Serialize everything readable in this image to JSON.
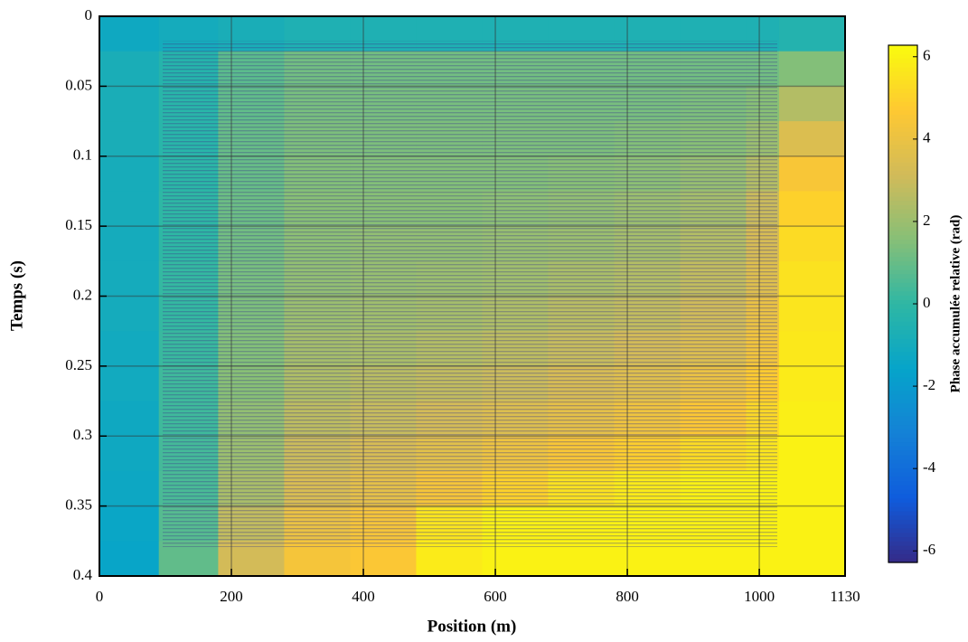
{
  "chart_data": {
    "type": "heatmap",
    "x_label": "Position (m)",
    "y_label": "Temps (s)",
    "colorbar_label": "Phase accumulée relative (rad)",
    "x_bins": [
      0,
      90,
      180,
      280,
      380,
      480,
      580,
      680,
      780,
      880,
      980,
      1030,
      1130
    ],
    "y_bins": [
      0,
      0.025,
      0.05,
      0.075,
      0.1,
      0.125,
      0.15,
      0.175,
      0.2,
      0.225,
      0.25,
      0.275,
      0.3,
      0.325,
      0.35,
      0.375,
      0.4
    ],
    "values": [
      [
        -1.2,
        -1.0,
        -0.8,
        -0.6,
        -0.6,
        -0.6,
        -0.6,
        -0.6,
        -0.6,
        -0.6,
        -0.6,
        -0.4
      ],
      [
        -0.8,
        -0.3,
        0.8,
        1.2,
        1.2,
        1.2,
        1.2,
        1.2,
        1.2,
        1.2,
        1.2,
        1.5
      ],
      [
        -0.8,
        -0.2,
        0.9,
        1.3,
        1.3,
        1.3,
        1.3,
        1.3,
        1.3,
        1.4,
        1.6,
        2.5
      ],
      [
        -0.8,
        -0.2,
        1.0,
        1.4,
        1.4,
        1.4,
        1.4,
        1.4,
        1.5,
        1.6,
        2.0,
        3.5
      ],
      [
        -0.9,
        -0.1,
        1.0,
        1.5,
        1.5,
        1.5,
        1.5,
        1.6,
        1.7,
        1.9,
        2.5,
        4.5
      ],
      [
        -0.9,
        0,
        1.1,
        1.6,
        1.6,
        1.6,
        1.7,
        1.8,
        2.0,
        2.2,
        3.0,
        5.0
      ],
      [
        -1,
        0,
        1.2,
        1.7,
        1.8,
        1.8,
        1.9,
        2.0,
        2.2,
        2.5,
        3.3,
        5.3
      ],
      [
        -1,
        0.1,
        1.3,
        1.8,
        1.9,
        2.0,
        2.1,
        2.3,
        2.5,
        2.8,
        3.6,
        5.5
      ],
      [
        -1,
        0.1,
        1.4,
        2.0,
        2.1,
        2.2,
        2.4,
        2.6,
        2.8,
        3.1,
        4.0,
        5.6
      ],
      [
        -1.1,
        0.2,
        1.5,
        2.2,
        2.3,
        2.5,
        2.7,
        2.9,
        3.2,
        3.5,
        4.3,
        5.7
      ],
      [
        -1.1,
        0.3,
        1.6,
        2.4,
        2.6,
        2.8,
        3.0,
        3.3,
        3.6,
        4.0,
        4.8,
        5.8
      ],
      [
        -1.2,
        0.3,
        1.8,
        2.7,
        2.9,
        3.2,
        3.5,
        3.8,
        4.2,
        4.6,
        5.2,
        5.9
      ],
      [
        -1.2,
        0.4,
        2.0,
        3.0,
        3.3,
        3.7,
        4.1,
        4.5,
        4.9,
        5.3,
        5.6,
        6.0
      ],
      [
        -1.3,
        0.5,
        2.3,
        3.4,
        3.8,
        4.4,
        5.0,
        5.5,
        5.8,
        6.0,
        6.0,
        6.0
      ],
      [
        -1.4,
        0.7,
        2.8,
        4.0,
        4.4,
        5.6,
        6.0,
        6.0,
        6.0,
        6.0,
        6.0,
        6.0
      ],
      [
        -1.5,
        0.9,
        3.2,
        4.4,
        4.6,
        5.8,
        6.0,
        6.0,
        6.0,
        6.0,
        6.0,
        6.0
      ]
    ],
    "xlim": [
      0,
      1130
    ],
    "xticks": [
      0,
      200,
      400,
      600,
      800,
      1000,
      1130
    ],
    "ylim": [
      0,
      0.4
    ],
    "yticks": [
      0,
      0.05,
      0.1,
      0.15,
      0.2,
      0.25,
      0.3,
      0.35,
      0.4
    ],
    "y_reversed": true,
    "clim": [
      -6.28,
      6.28
    ],
    "cticks": [
      -6,
      -4,
      -2,
      0,
      2,
      4,
      6
    ],
    "colormap": [
      "#352a87",
      "#0f5cdd",
      "#1481d6",
      "#06a4ca",
      "#2eb7a4",
      "#87bf77",
      "#d1bb59",
      "#fec832",
      "#f9fb0e"
    ],
    "grid": true
  }
}
